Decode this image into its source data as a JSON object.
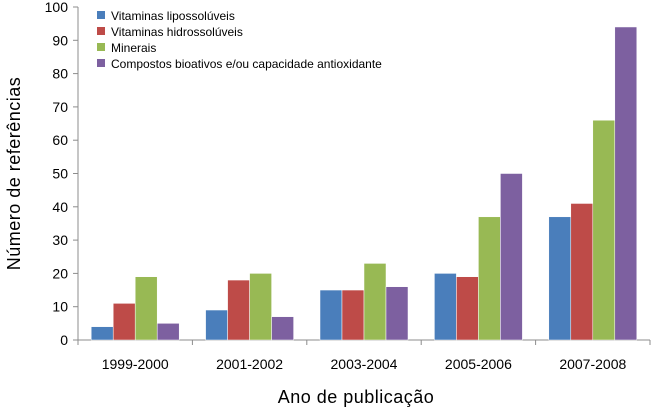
{
  "chart_data": {
    "type": "bar",
    "title": "",
    "xlabel": "Ano de publicação",
    "ylabel": "Número de referências",
    "categories": [
      "1999-2000",
      "2001-2002",
      "2003-2004",
      "2005-2006",
      "2007-2008"
    ],
    "series": [
      {
        "name": "Vitaminas lipossolúveis",
        "color": "#4a7ebb",
        "values": [
          4,
          9,
          15,
          20,
          37
        ]
      },
      {
        "name": "Vitaminas hidrossolúveis",
        "color": "#be4b48",
        "values": [
          11,
          18,
          15,
          19,
          41
        ]
      },
      {
        "name": "Minerais",
        "color": "#98b954",
        "values": [
          19,
          20,
          23,
          37,
          66
        ]
      },
      {
        "name": "Compostos bioativos e/ou capacidade antioxidante",
        "color": "#7d60a0",
        "values": [
          5,
          7,
          16,
          50,
          94
        ]
      }
    ],
    "ylim": [
      0,
      100
    ],
    "yticks": [
      0,
      10,
      20,
      30,
      40,
      50,
      60,
      70,
      80,
      90,
      100
    ],
    "grid": false,
    "legend": "top-left"
  }
}
